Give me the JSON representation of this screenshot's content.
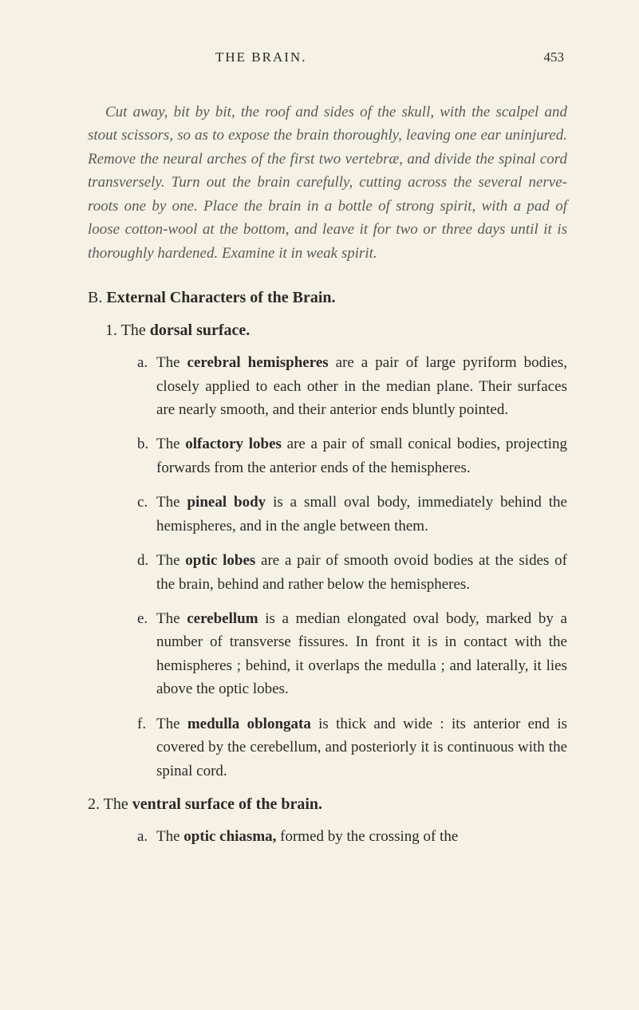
{
  "header": {
    "title": "THE BRAIN.",
    "pageno": "453"
  },
  "intro": "Cut away, bit by bit, the roof and sides of the skull, with the scalpel and stout scissors, so as to expose the brain thoroughly, leaving one ear uninjured. Remove the neural arches of the first two vertebræ, and divide the spinal cord transversely. Turn out the brain carefully, cutting across the several nerve-roots one by one. Place the brain in a bottle of strong spirit, with a pad of loose cotton-wool at the bottom, and leave it for two or three days until it is thoroughly hardened. Examine it in weak spirit.",
  "sectionB": {
    "label": "B.",
    "title": "External Characters of the Brain."
  },
  "item1": {
    "num": "1.",
    "pre": "The ",
    "bold": "dorsal surface."
  },
  "letters1": {
    "a": {
      "l": "a.",
      "pre": "The ",
      "bold": "cerebral hemispheres",
      "post": " are a pair of large pyri­form bodies, closely applied to each other in the median plane. Their surfaces are nearly smooth, and their anterior ends bluntly pointed."
    },
    "b": {
      "l": "b.",
      "pre": "The ",
      "bold": "olfactory lobes",
      "post": " are a pair of small conical bodies, projecting forwards from the anterior ends of the hemispheres."
    },
    "c": {
      "l": "c.",
      "pre": "The ",
      "bold": "pineal body",
      "post": " is a small oval body, immediately behind the hemispheres, and in the angle between them."
    },
    "d": {
      "l": "d.",
      "pre": "The ",
      "bold": "optic lobes",
      "post": " are a pair of smooth ovoid bodies at the sides of the brain, behind and rather below the hemispheres."
    },
    "e": {
      "l": "e.",
      "pre": "The ",
      "bold": "cerebellum",
      "post": " is a median elongated oval body, marked by a number of transverse fissures. In front it is in contact with the hemispheres ; behind, it overlaps the medulla ; and laterally, it lies above the optic lobes."
    },
    "f": {
      "l": "f.",
      "pre": "The ",
      "bold": "medulla oblongata",
      "post": " is thick and wide : its an­terior end is covered by the cerebellum, and pos­teriorly it is continuous with the spinal cord."
    }
  },
  "item2": {
    "num": "2.",
    "pre": "The ",
    "bold": "ventral surface of the brain."
  },
  "letters2": {
    "a": {
      "l": "a.",
      "pre": "The ",
      "bold": "optic chiasma,",
      "post": " formed by the crossing of the"
    }
  }
}
